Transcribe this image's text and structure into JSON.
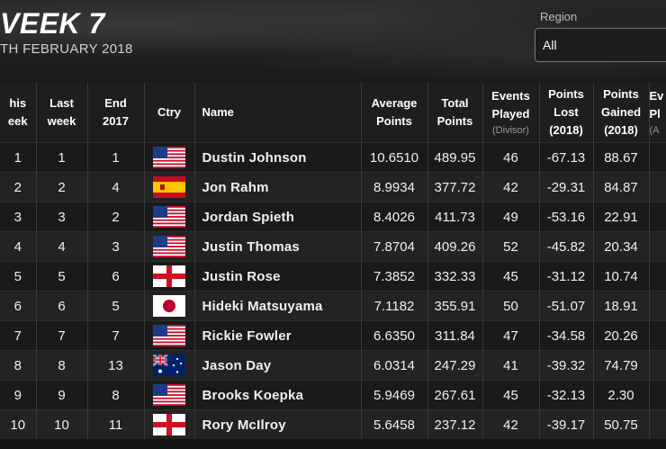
{
  "header": {
    "title": "VEEK 7",
    "date": "TH FEBRUARY 2018",
    "region_label": "Region",
    "region_value": "All"
  },
  "columns": {
    "this_week": [
      "his",
      "eek"
    ],
    "last_week": [
      "Last",
      "week"
    ],
    "end_2017": [
      "End",
      "2017"
    ],
    "country": "Ctry",
    "name": "Name",
    "average_points": [
      "Average",
      "Points"
    ],
    "total_points": [
      "Total",
      "Points"
    ],
    "events_played": [
      "Events",
      "Played",
      "(Divisor)"
    ],
    "points_lost": [
      "Points",
      "Lost",
      "(2018)"
    ],
    "points_gained": [
      "Points",
      "Gained",
      "(2018)"
    ],
    "events_partial": [
      "Ev",
      "Pl",
      "(A"
    ]
  },
  "rows": [
    {
      "this": "1",
      "last": "1",
      "end": "1",
      "flag": "usa-flag-icon",
      "name": "Dustin Johnson",
      "avg": "10.6510",
      "total": "489.95",
      "events": "46",
      "lost": "-67.13",
      "gained": "88.67"
    },
    {
      "this": "2",
      "last": "2",
      "end": "4",
      "flag": "spain-flag-icon",
      "name": "Jon Rahm",
      "avg": "8.9934",
      "total": "377.72",
      "events": "42",
      "lost": "-29.31",
      "gained": "84.87"
    },
    {
      "this": "3",
      "last": "3",
      "end": "2",
      "flag": "usa-flag-icon",
      "name": "Jordan Spieth",
      "avg": "8.4026",
      "total": "411.73",
      "events": "49",
      "lost": "-53.16",
      "gained": "22.91"
    },
    {
      "this": "4",
      "last": "4",
      "end": "3",
      "flag": "usa-flag-icon",
      "name": "Justin Thomas",
      "avg": "7.8704",
      "total": "409.26",
      "events": "52",
      "lost": "-45.82",
      "gained": "20.34"
    },
    {
      "this": "5",
      "last": "5",
      "end": "6",
      "flag": "england-flag-icon",
      "name": "Justin Rose",
      "avg": "7.3852",
      "total": "332.33",
      "events": "45",
      "lost": "-31.12",
      "gained": "10.74"
    },
    {
      "this": "6",
      "last": "6",
      "end": "5",
      "flag": "japan-flag-icon",
      "name": "Hideki Matsuyama",
      "avg": "7.1182",
      "total": "355.91",
      "events": "50",
      "lost": "-51.07",
      "gained": "18.91"
    },
    {
      "this": "7",
      "last": "7",
      "end": "7",
      "flag": "usa-flag-icon",
      "name": "Rickie Fowler",
      "avg": "6.6350",
      "total": "311.84",
      "events": "47",
      "lost": "-34.58",
      "gained": "20.26"
    },
    {
      "this": "8",
      "last": "8",
      "end": "13",
      "flag": "australia-flag-icon",
      "name": "Jason Day",
      "avg": "6.0314",
      "total": "247.29",
      "events": "41",
      "lost": "-39.32",
      "gained": "74.79"
    },
    {
      "this": "9",
      "last": "9",
      "end": "8",
      "flag": "usa-flag-icon",
      "name": "Brooks Koepka",
      "avg": "5.9469",
      "total": "267.61",
      "events": "45",
      "lost": "-32.13",
      "gained": "2.30"
    },
    {
      "this": "10",
      "last": "10",
      "end": "11",
      "flag": "northern-ireland-flag-icon",
      "name": "Rory McIlroy",
      "avg": "5.6458",
      "total": "237.12",
      "events": "42",
      "lost": "-39.17",
      "gained": "50.75"
    }
  ]
}
